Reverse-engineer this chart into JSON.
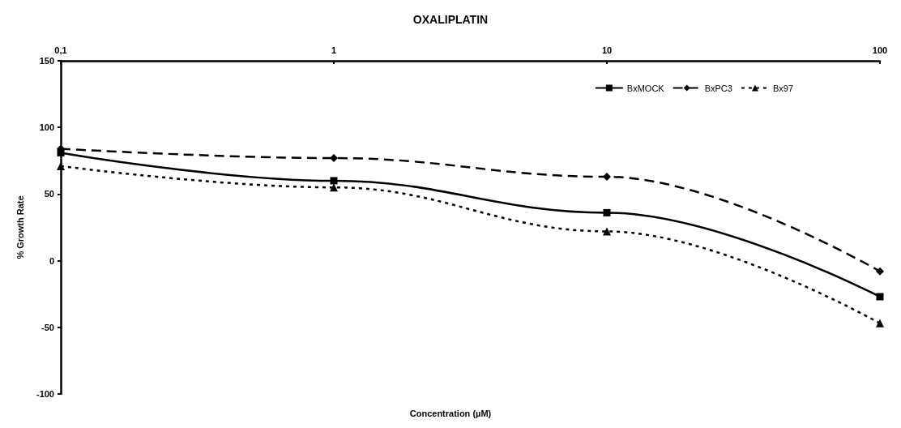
{
  "chart_data": {
    "type": "line",
    "title": "OXALIPLATIN",
    "xlabel": "Concentration (µM)",
    "ylabel": "% Growth Rate",
    "x": [
      0.1,
      1,
      10,
      100
    ],
    "log": "x",
    "xlim": [
      0.1,
      100
    ],
    "xticks": [
      {
        "value": 0.1,
        "label": "0,1"
      },
      1,
      10,
      100
    ],
    "ylim": [
      -100,
      150
    ],
    "yticks": [
      -100,
      -50,
      0,
      50,
      100,
      150
    ],
    "grid": false,
    "legend": "top right",
    "series": [
      {
        "name": "BxMOCK",
        "color": "#000000",
        "values": [
          81,
          60,
          36,
          -27
        ],
        "marker": "square",
        "line_style": "solid"
      },
      {
        "name": "BxPC3",
        "color": "#000000",
        "values": [
          84,
          77,
          63,
          -8
        ],
        "marker": "diamond",
        "line_style": "dashed"
      },
      {
        "name": "Bx97",
        "color": "#000000",
        "values": [
          71,
          55,
          22,
          -47
        ],
        "marker": "triangle",
        "line_style": "dotted"
      }
    ]
  }
}
